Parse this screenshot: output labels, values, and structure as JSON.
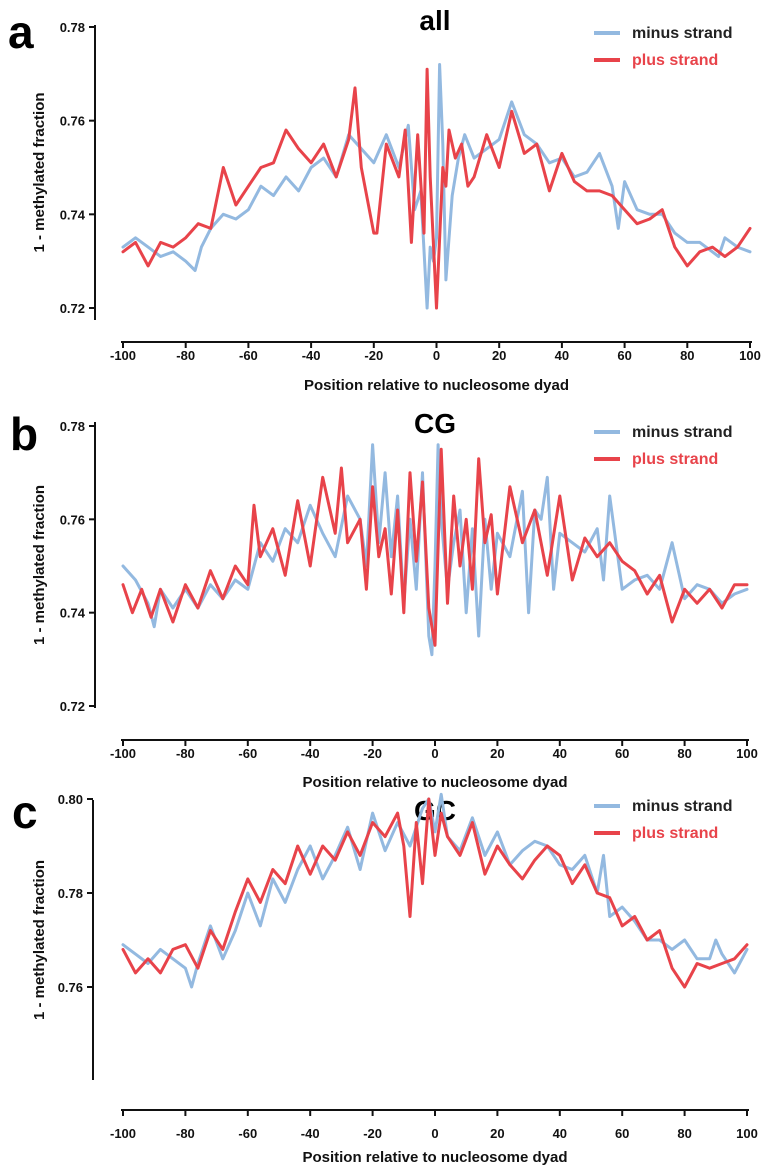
{
  "colors": {
    "minus": "#93b9e0",
    "plus": "#e8434a",
    "axis": "#111111"
  },
  "chart_data": [
    {
      "type": "line",
      "panel_label": "a",
      "title": "all",
      "xlabel": "Position relative to nucleosome dyad",
      "ylabel": "1 - methylated fraction",
      "xlim": [
        -100,
        100
      ],
      "ylim": [
        0.72,
        0.78
      ],
      "xticks": [
        -100,
        -80,
        -60,
        -40,
        -20,
        0,
        20,
        40,
        60,
        80,
        100
      ],
      "xtick_labels": [
        "-100",
        "-80",
        "-60",
        "-40",
        "-20",
        "0",
        "20",
        "40",
        "60",
        "80",
        "100"
      ],
      "yticks": [
        0.72,
        0.74,
        0.76,
        0.78
      ],
      "ytick_labels": [
        "0.72",
        "0.74",
        "0.76",
        "0.78"
      ],
      "grid": false,
      "legend_position": "top-right",
      "series": [
        {
          "name": "minus strand",
          "color": "#93b9e0",
          "x": [
            -100,
            -96,
            -92,
            -88,
            -84,
            -80,
            -77,
            -75,
            -72,
            -68,
            -64,
            -60,
            -56,
            -52,
            -48,
            -44,
            -40,
            -36,
            -32,
            -28,
            -24,
            -20,
            -16,
            -12,
            -9,
            -7,
            -5,
            -3,
            -2,
            -1,
            0,
            1,
            2,
            3,
            5,
            7,
            9,
            12,
            16,
            20,
            24,
            28,
            32,
            36,
            40,
            44,
            48,
            52,
            56,
            58,
            60,
            64,
            68,
            72,
            76,
            80,
            84,
            88,
            90,
            92,
            96,
            100
          ],
          "y": [
            0.733,
            0.735,
            0.733,
            0.731,
            0.732,
            0.73,
            0.728,
            0.733,
            0.737,
            0.74,
            0.739,
            0.741,
            0.746,
            0.744,
            0.748,
            0.745,
            0.75,
            0.752,
            0.748,
            0.757,
            0.754,
            0.751,
            0.757,
            0.75,
            0.759,
            0.741,
            0.745,
            0.72,
            0.733,
            0.73,
            0.735,
            0.772,
            0.755,
            0.726,
            0.744,
            0.752,
            0.757,
            0.752,
            0.754,
            0.756,
            0.764,
            0.757,
            0.755,
            0.751,
            0.752,
            0.748,
            0.749,
            0.753,
            0.746,
            0.737,
            0.747,
            0.741,
            0.74,
            0.74,
            0.736,
            0.734,
            0.734,
            0.732,
            0.731,
            0.735,
            0.733,
            0.732
          ]
        },
        {
          "name": "plus strand",
          "color": "#e8434a",
          "x": [
            -100,
            -96,
            -92,
            -88,
            -84,
            -80,
            -76,
            -72,
            -68,
            -64,
            -60,
            -56,
            -52,
            -48,
            -44,
            -40,
            -36,
            -32,
            -28,
            -26,
            -24,
            -20,
            -19,
            -16,
            -12,
            -10,
            -8,
            -6,
            -4,
            -3,
            -2,
            0,
            2,
            3,
            4,
            6,
            8,
            10,
            12,
            16,
            20,
            24,
            28,
            32,
            36,
            40,
            44,
            48,
            52,
            56,
            60,
            64,
            68,
            72,
            76,
            80,
            84,
            88,
            92,
            96,
            100
          ],
          "y": [
            0.732,
            0.734,
            0.729,
            0.734,
            0.733,
            0.735,
            0.738,
            0.737,
            0.75,
            0.742,
            0.746,
            0.75,
            0.751,
            0.758,
            0.754,
            0.751,
            0.755,
            0.748,
            0.756,
            0.767,
            0.75,
            0.736,
            0.736,
            0.755,
            0.748,
            0.758,
            0.734,
            0.757,
            0.736,
            0.771,
            0.748,
            0.72,
            0.75,
            0.746,
            0.758,
            0.752,
            0.755,
            0.746,
            0.748,
            0.757,
            0.75,
            0.762,
            0.753,
            0.755,
            0.745,
            0.753,
            0.747,
            0.745,
            0.745,
            0.744,
            0.741,
            0.738,
            0.739,
            0.741,
            0.733,
            0.729,
            0.732,
            0.733,
            0.731,
            0.733,
            0.737
          ]
        }
      ]
    },
    {
      "type": "line",
      "panel_label": "b",
      "title": "CG",
      "xlabel": "Position relative to nucleosome dyad",
      "ylabel": "1 - methylated fraction",
      "xlim": [
        -100,
        100
      ],
      "ylim": [
        0.72,
        0.78
      ],
      "xticks": [
        -100,
        -80,
        -60,
        -40,
        -20,
        0,
        20,
        40,
        60,
        80,
        100
      ],
      "xtick_labels": [
        "-100",
        "-80",
        "-60",
        "-40",
        "-20",
        "0",
        "20",
        "40",
        "60",
        "80",
        "100"
      ],
      "yticks": [
        0.72,
        0.74,
        0.76,
        0.78
      ],
      "ytick_labels": [
        "0.72",
        "0.74",
        "0.76",
        "0.78"
      ],
      "grid": false,
      "legend_position": "top-right",
      "series": [
        {
          "name": "minus strand",
          "color": "#93b9e0",
          "x": [
            -100,
            -96,
            -92,
            -90,
            -88,
            -84,
            -80,
            -76,
            -72,
            -68,
            -64,
            -60,
            -56,
            -52,
            -48,
            -44,
            -40,
            -36,
            -32,
            -28,
            -24,
            -22,
            -20,
            -18,
            -16,
            -14,
            -12,
            -10,
            -8,
            -6,
            -4,
            -2,
            -1,
            0,
            1,
            2,
            4,
            6,
            8,
            10,
            12,
            14,
            16,
            18,
            20,
            24,
            28,
            30,
            32,
            34,
            36,
            38,
            40,
            44,
            48,
            52,
            54,
            56,
            60,
            64,
            68,
            72,
            76,
            80,
            84,
            88,
            92,
            96,
            100
          ],
          "y": [
            0.75,
            0.747,
            0.742,
            0.737,
            0.745,
            0.741,
            0.745,
            0.741,
            0.746,
            0.743,
            0.747,
            0.745,
            0.755,
            0.751,
            0.758,
            0.755,
            0.763,
            0.757,
            0.752,
            0.765,
            0.76,
            0.75,
            0.776,
            0.755,
            0.77,
            0.752,
            0.765,
            0.742,
            0.76,
            0.745,
            0.77,
            0.735,
            0.731,
            0.75,
            0.776,
            0.76,
            0.745,
            0.755,
            0.762,
            0.74,
            0.758,
            0.735,
            0.76,
            0.745,
            0.757,
            0.752,
            0.766,
            0.74,
            0.762,
            0.76,
            0.769,
            0.745,
            0.757,
            0.755,
            0.753,
            0.758,
            0.747,
            0.765,
            0.745,
            0.747,
            0.748,
            0.745,
            0.755,
            0.743,
            0.746,
            0.745,
            0.742,
            0.744,
            0.745
          ]
        },
        {
          "name": "plus strand",
          "color": "#e8434a",
          "x": [
            -100,
            -97,
            -94,
            -91,
            -88,
            -84,
            -80,
            -76,
            -72,
            -68,
            -64,
            -60,
            -58,
            -56,
            -52,
            -48,
            -44,
            -40,
            -36,
            -32,
            -30,
            -28,
            -24,
            -22,
            -20,
            -18,
            -16,
            -14,
            -12,
            -10,
            -8,
            -6,
            -4,
            -2,
            0,
            2,
            4,
            6,
            8,
            10,
            12,
            14,
            16,
            18,
            20,
            24,
            28,
            32,
            36,
            40,
            44,
            48,
            52,
            56,
            60,
            64,
            68,
            72,
            76,
            80,
            84,
            88,
            92,
            96,
            100
          ],
          "y": [
            0.746,
            0.74,
            0.745,
            0.739,
            0.745,
            0.738,
            0.746,
            0.741,
            0.749,
            0.743,
            0.75,
            0.746,
            0.763,
            0.752,
            0.758,
            0.748,
            0.764,
            0.75,
            0.769,
            0.757,
            0.771,
            0.755,
            0.76,
            0.745,
            0.767,
            0.752,
            0.758,
            0.744,
            0.762,
            0.74,
            0.77,
            0.751,
            0.768,
            0.741,
            0.733,
            0.775,
            0.742,
            0.765,
            0.75,
            0.76,
            0.745,
            0.773,
            0.755,
            0.761,
            0.744,
            0.767,
            0.755,
            0.762,
            0.748,
            0.765,
            0.747,
            0.756,
            0.752,
            0.755,
            0.751,
            0.749,
            0.744,
            0.748,
            0.738,
            0.745,
            0.742,
            0.745,
            0.741,
            0.746,
            0.746
          ]
        }
      ]
    },
    {
      "type": "line",
      "panel_label": "c",
      "title": "GC",
      "xlabel": "Position relative to nucleosome dyad",
      "ylabel": "1 - methylated fraction",
      "xlim": [
        -100,
        100
      ],
      "ylim": [
        0.75,
        0.81
      ],
      "xticks": [
        -100,
        -80,
        -60,
        -40,
        -20,
        0,
        20,
        40,
        60,
        80,
        100
      ],
      "xtick_labels": [
        "-100",
        "-80",
        "-60",
        "-40",
        "-20",
        "0",
        "20",
        "40",
        "60",
        "80",
        "100"
      ],
      "yticks": [
        0.76,
        0.78,
        0.8
      ],
      "ytick_labels": [
        "0.76",
        "0.78",
        "0.80"
      ],
      "grid": false,
      "legend_position": "top-right",
      "series": [
        {
          "name": "minus strand",
          "color": "#93b9e0",
          "x": [
            -100,
            -96,
            -92,
            -88,
            -84,
            -80,
            -78,
            -76,
            -72,
            -68,
            -64,
            -60,
            -56,
            -52,
            -48,
            -44,
            -40,
            -36,
            -32,
            -28,
            -24,
            -20,
            -16,
            -12,
            -8,
            -4,
            -2,
            0,
            2,
            4,
            8,
            12,
            16,
            20,
            24,
            28,
            32,
            36,
            40,
            44,
            48,
            52,
            54,
            56,
            60,
            64,
            68,
            72,
            76,
            80,
            84,
            88,
            90,
            92,
            96,
            100
          ],
          "y": [
            0.769,
            0.767,
            0.765,
            0.768,
            0.766,
            0.764,
            0.76,
            0.765,
            0.773,
            0.766,
            0.772,
            0.78,
            0.773,
            0.783,
            0.778,
            0.785,
            0.79,
            0.783,
            0.788,
            0.794,
            0.785,
            0.797,
            0.789,
            0.795,
            0.79,
            0.798,
            0.8,
            0.793,
            0.801,
            0.792,
            0.789,
            0.796,
            0.788,
            0.793,
            0.786,
            0.789,
            0.791,
            0.79,
            0.786,
            0.785,
            0.788,
            0.78,
            0.788,
            0.775,
            0.777,
            0.774,
            0.77,
            0.77,
            0.768,
            0.77,
            0.766,
            0.766,
            0.77,
            0.767,
            0.763,
            0.768
          ]
        },
        {
          "name": "plus strand",
          "color": "#e8434a",
          "x": [
            -100,
            -96,
            -92,
            -88,
            -84,
            -80,
            -76,
            -72,
            -68,
            -64,
            -60,
            -56,
            -52,
            -48,
            -44,
            -40,
            -36,
            -32,
            -28,
            -24,
            -20,
            -16,
            -12,
            -10,
            -8,
            -6,
            -4,
            -2,
            0,
            2,
            4,
            8,
            12,
            16,
            20,
            24,
            28,
            32,
            36,
            40,
            44,
            48,
            52,
            56,
            60,
            64,
            68,
            72,
            76,
            80,
            84,
            88,
            92,
            96,
            100
          ],
          "y": [
            0.768,
            0.763,
            0.766,
            0.763,
            0.768,
            0.769,
            0.764,
            0.772,
            0.768,
            0.776,
            0.783,
            0.778,
            0.785,
            0.782,
            0.79,
            0.784,
            0.79,
            0.787,
            0.793,
            0.788,
            0.795,
            0.792,
            0.797,
            0.79,
            0.775,
            0.795,
            0.782,
            0.8,
            0.788,
            0.797,
            0.792,
            0.788,
            0.795,
            0.784,
            0.79,
            0.786,
            0.783,
            0.787,
            0.79,
            0.788,
            0.782,
            0.786,
            0.78,
            0.779,
            0.773,
            0.775,
            0.77,
            0.772,
            0.764,
            0.76,
            0.765,
            0.764,
            0.765,
            0.766,
            0.769
          ]
        }
      ]
    }
  ]
}
